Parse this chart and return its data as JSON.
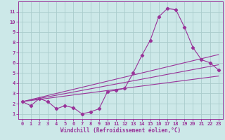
{
  "xlabel": "Windchill (Refroidissement éolien,°C)",
  "bg_color": "#cce8e8",
  "grid_color": "#aacccc",
  "line_color": "#993399",
  "xlim": [
    -0.5,
    23.5
  ],
  "ylim": [
    0.5,
    12.0
  ],
  "xticks": [
    0,
    1,
    2,
    3,
    4,
    5,
    6,
    7,
    8,
    9,
    10,
    11,
    12,
    13,
    14,
    15,
    16,
    17,
    18,
    19,
    20,
    21,
    22,
    23
  ],
  "yticks": [
    1,
    2,
    3,
    4,
    5,
    6,
    7,
    8,
    9,
    10,
    11
  ],
  "line1_x": [
    0,
    1,
    2,
    3,
    4,
    5,
    6,
    7,
    8,
    9,
    10,
    11,
    12,
    13,
    14,
    15,
    16,
    17,
    18,
    19,
    20,
    21,
    22,
    23
  ],
  "line1_y": [
    2.2,
    1.8,
    2.5,
    2.2,
    1.5,
    1.8,
    1.6,
    1.0,
    1.2,
    1.5,
    3.2,
    3.3,
    3.5,
    5.0,
    6.7,
    8.2,
    10.5,
    11.3,
    11.2,
    9.5,
    7.5,
    6.3,
    6.0,
    5.3
  ],
  "line2_x": [
    0,
    23
  ],
  "line2_y": [
    2.2,
    6.8
  ],
  "line3_x": [
    0,
    23
  ],
  "line3_y": [
    2.2,
    5.8
  ],
  "line4_x": [
    0,
    23
  ],
  "line4_y": [
    2.2,
    4.7
  ]
}
